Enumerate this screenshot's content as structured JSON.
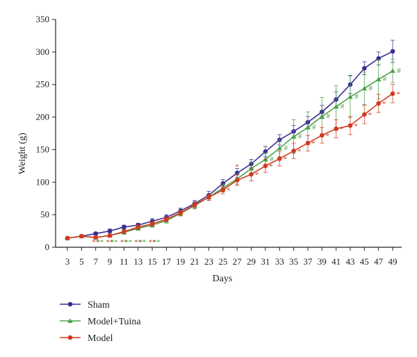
{
  "chart_data": {
    "type": "line",
    "xlabel": "Days",
    "ylabel": "Weight (g)",
    "x": [
      3,
      5,
      7,
      9,
      11,
      13,
      15,
      17,
      19,
      21,
      23,
      25,
      27,
      29,
      31,
      33,
      35,
      37,
      39,
      41,
      43,
      45,
      47,
      49
    ],
    "xticks": [
      "3",
      "5",
      "7",
      "9",
      "11",
      "13",
      "15",
      "17",
      "19",
      "21",
      "23",
      "25",
      "27",
      "29",
      "31",
      "33",
      "35",
      "37",
      "39",
      "41",
      "43",
      "45",
      "47",
      "49"
    ],
    "ylim": [
      0,
      350
    ],
    "yticks": [
      "0",
      "50",
      "100",
      "150",
      "200",
      "250",
      "300",
      "350"
    ],
    "grid": false,
    "legend_position": "bottom-left",
    "series": [
      {
        "name": "Sham",
        "color": "#3a2d8f",
        "marker": "circle",
        "values": [
          14,
          17,
          21,
          25,
          31,
          34,
          40,
          46,
          56,
          67,
          80,
          98,
          114,
          128,
          147,
          165,
          178,
          192,
          208,
          227,
          250,
          275,
          290,
          301
        ],
        "error": [
          2,
          2,
          2,
          3,
          3,
          3,
          4,
          4,
          4,
          5,
          6,
          6,
          7,
          7,
          8,
          8,
          9,
          9,
          10,
          12,
          14,
          10,
          10,
          17
        ]
      },
      {
        "name": "Model+Tuina",
        "color": "#4aa14a",
        "marker": "triangle",
        "values": [
          14,
          17,
          15,
          18,
          23,
          29,
          34,
          41,
          52,
          64,
          77,
          91,
          105,
          121,
          135,
          152,
          170,
          184,
          201,
          216,
          231,
          244,
          258,
          271
        ],
        "error": [
          2,
          2,
          2,
          2,
          3,
          3,
          3,
          4,
          4,
          5,
          5,
          6,
          8,
          9,
          10,
          13,
          26,
          24,
          29,
          32,
          32,
          25,
          30,
          18
        ]
      },
      {
        "name": "Model",
        "color": "#d13a1f",
        "marker": "circle",
        "values": [
          14,
          17,
          15,
          18,
          24,
          31,
          36,
          43,
          53,
          65,
          77,
          88,
          103,
          112,
          125,
          136,
          148,
          160,
          172,
          182,
          187,
          204,
          221,
          236
        ],
        "error": [
          2,
          2,
          2,
          2,
          3,
          3,
          4,
          4,
          4,
          5,
          5,
          6,
          8,
          10,
          10,
          11,
          12,
          12,
          12,
          14,
          14,
          14,
          14,
          14
        ]
      }
    ],
    "annotations": {
      "model_markers": [
        {
          "x": 7,
          "text": "**"
        },
        {
          "x": 9,
          "text": "**"
        },
        {
          "x": 11,
          "text": "**"
        },
        {
          "x": 13,
          "text": "**"
        },
        {
          "x": 15,
          "text": "**"
        },
        {
          "x": 25,
          "text": "*"
        },
        {
          "x": 27,
          "text": "*"
        },
        {
          "x": 29,
          "text": "*"
        },
        {
          "x": 31,
          "text": "*"
        },
        {
          "x": 33,
          "text": "*"
        },
        {
          "x": 35,
          "text": "*"
        },
        {
          "x": 37,
          "text": "*"
        },
        {
          "x": 39,
          "text": "*"
        },
        {
          "x": 41,
          "text": "*"
        },
        {
          "x": 43,
          "text": "*"
        },
        {
          "x": 45,
          "text": "*"
        },
        {
          "x": 47,
          "text": "*"
        },
        {
          "x": 49,
          "text": "*"
        }
      ],
      "tuina_markers": [
        {
          "x": 31,
          "text": "#"
        },
        {
          "x": 33,
          "text": "#"
        },
        {
          "x": 35,
          "text": "#"
        },
        {
          "x": 37,
          "text": "#"
        },
        {
          "x": 39,
          "text": "#"
        },
        {
          "x": 41,
          "text": "#"
        },
        {
          "x": 43,
          "text": "#"
        },
        {
          "x": 45,
          "text": "#"
        },
        {
          "x": 47,
          "text": "#"
        },
        {
          "x": 49,
          "text": "#"
        }
      ]
    }
  }
}
